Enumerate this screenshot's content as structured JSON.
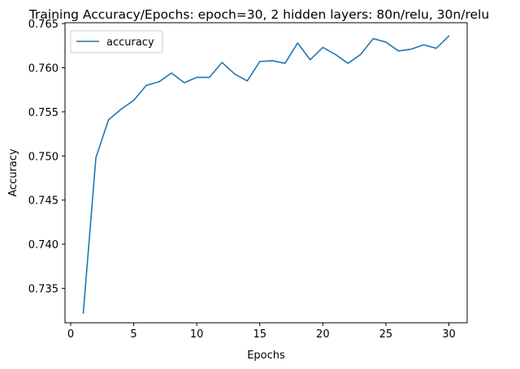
{
  "chart_data": {
    "type": "line",
    "title": "Training Accuracy/Epochs: epoch=30, 2 hidden layers: 80n/relu, 30n/relu",
    "xlabel": "Epochs",
    "ylabel": "Accuracy",
    "xlim": [
      -0.45,
      31.45
    ],
    "ylim": [
      0.7311,
      0.7651
    ],
    "xticks": [
      0,
      5,
      10,
      15,
      20,
      25,
      30
    ],
    "xtick_labels": [
      "0",
      "5",
      "10",
      "15",
      "20",
      "25",
      "30"
    ],
    "yticks": [
      0.735,
      0.74,
      0.745,
      0.75,
      0.755,
      0.76,
      0.765
    ],
    "ytick_labels": [
      "0.735",
      "0.740",
      "0.745",
      "0.750",
      "0.755",
      "0.760",
      "0.765"
    ],
    "grid": false,
    "legend_position": "upper-left",
    "series": [
      {
        "name": "accuracy",
        "color": "#1f77b4",
        "x": [
          1,
          2,
          3,
          4,
          5,
          6,
          7,
          8,
          9,
          10,
          11,
          12,
          13,
          14,
          15,
          16,
          17,
          18,
          19,
          20,
          21,
          22,
          23,
          24,
          25,
          26,
          27,
          28,
          29,
          30
        ],
        "y": [
          0.7322,
          0.7498,
          0.7541,
          0.7553,
          0.7563,
          0.758,
          0.7584,
          0.7594,
          0.7583,
          0.7589,
          0.7589,
          0.7606,
          0.7593,
          0.7585,
          0.7607,
          0.7608,
          0.7605,
          0.7628,
          0.7609,
          0.7623,
          0.7615,
          0.7605,
          0.7615,
          0.7633,
          0.7629,
          0.7619,
          0.7621,
          0.7626,
          0.7622,
          0.7636
        ]
      }
    ]
  }
}
